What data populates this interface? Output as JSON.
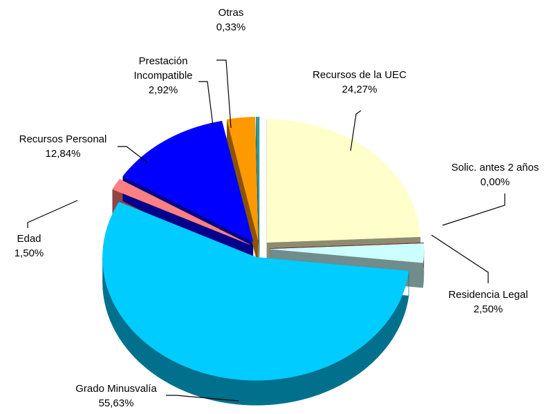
{
  "chart_data": {
    "type": "pie",
    "categories": [
      "Recursos de la UEC",
      "Solic. antes 2 años",
      "Residencia Legal",
      "Grado Minusvalía",
      "Edad",
      "Recursos Personal",
      "Prestación Incompatible",
      "Otras"
    ],
    "values": [
      24.27,
      0.0,
      2.5,
      55.63,
      1.5,
      12.84,
      2.92,
      0.33
    ],
    "value_labels": [
      "24,27%",
      "0,00%",
      "2,50%",
      "55,63%",
      "1,50%",
      "12,84%",
      "2,92%",
      "0,33%"
    ],
    "colors": [
      "#ffffcc",
      "#993333",
      "#ccffff",
      "#00ccff",
      "#ff8080",
      "#0000ff",
      "#ff9900",
      "#339999"
    ]
  }
}
